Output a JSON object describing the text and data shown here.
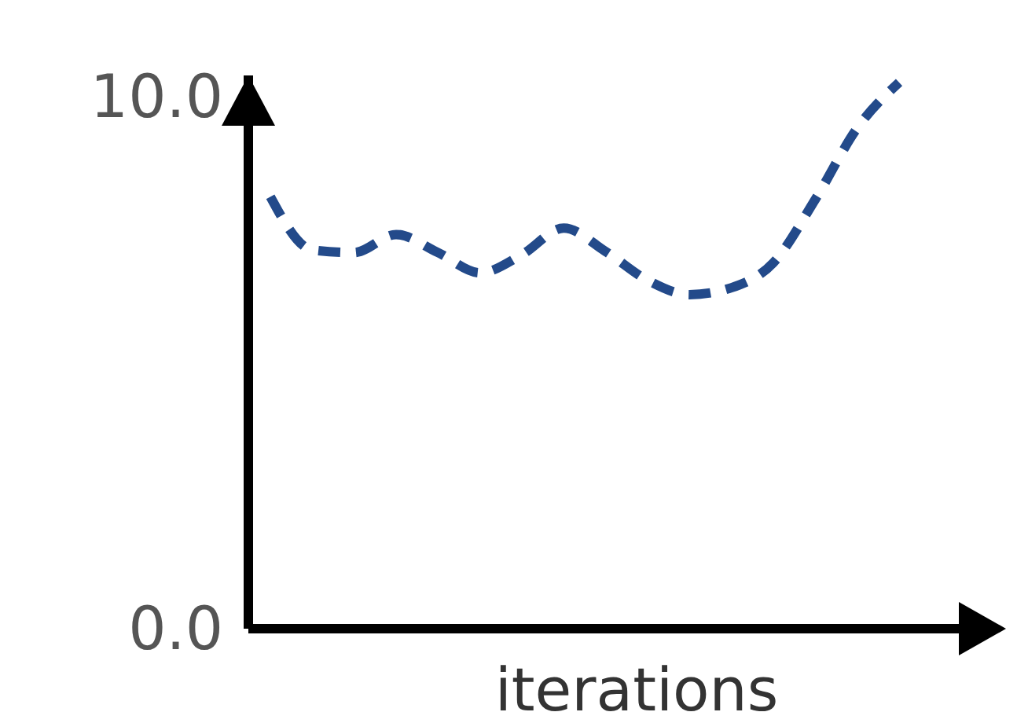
{
  "chart_data": {
    "type": "line",
    "xlabel": "iterations",
    "categories": [
      null,
      null,
      null,
      null,
      null,
      null,
      null,
      null,
      null,
      null,
      null,
      null,
      null,
      null,
      null,
      null
    ],
    "series": [
      {
        "color": "#234a8a",
        "values": [
          8.12,
          7.12,
          7.07,
          7.41,
          7.07,
          6.69,
          7.03,
          7.53,
          7.09,
          6.55,
          6.28,
          6.41,
          6.88,
          8.07,
          9.41,
          10.27
        ]
      }
    ],
    "ylim": [
      0,
      10.4
    ],
    "yticks": [
      {
        "value": 0,
        "label": "0.0"
      },
      {
        "value": 10,
        "label": "10.0"
      }
    ],
    "tick_labels": "y",
    "line_style": "dashed"
  }
}
